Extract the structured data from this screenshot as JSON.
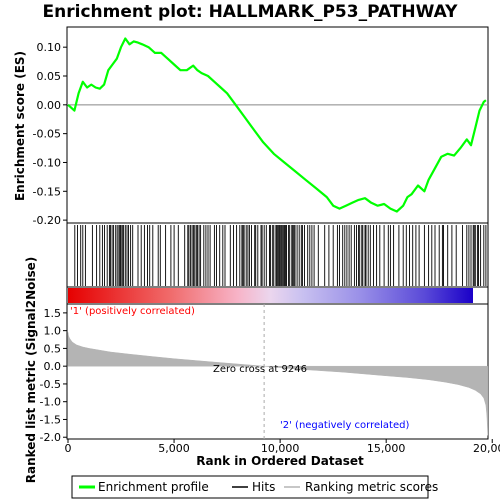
{
  "chart_data": [
    {
      "panel": "enrichment",
      "type": "line",
      "title": "Enrichment plot: HALLMARK_P53_PATHWAY",
      "ylabel": "Enrichment score (ES)",
      "ylim": [
        -0.205,
        0.135
      ],
      "yticks": [
        0.1,
        0.05,
        0.0,
        -0.05,
        -0.1,
        -0.15,
        -0.2
      ],
      "ytick_labels": [
        "0.10",
        "0.05",
        "0.00",
        "-0.05",
        "-0.10",
        "-0.15",
        "-0.20"
      ],
      "xlim": [
        0,
        19800
      ],
      "series": [
        {
          "name": "Enrichment profile",
          "color": "#00ff00",
          "x": [
            0,
            300,
            500,
            700,
            900,
            1100,
            1300,
            1500,
            1700,
            1900,
            2100,
            2300,
            2500,
            2700,
            2900,
            3100,
            3300,
            3500,
            3800,
            4100,
            4400,
            4700,
            5000,
            5300,
            5600,
            5900,
            6100,
            6300,
            6600,
            6900,
            7200,
            7500,
            7900,
            8300,
            8700,
            9200,
            9700,
            10200,
            10700,
            11200,
            11700,
            12200,
            12500,
            12800,
            13100,
            13400,
            13700,
            14000,
            14300,
            14600,
            14900,
            15200,
            15500,
            15800,
            16000,
            16200,
            16500,
            16800,
            17000,
            17300,
            17600,
            17900,
            18200,
            18500,
            18800,
            19000,
            19200,
            19400,
            19600,
            19700
          ],
          "y": [
            0.0,
            -0.01,
            0.02,
            0.04,
            0.03,
            0.035,
            0.03,
            0.028,
            0.035,
            0.06,
            0.07,
            0.08,
            0.1,
            0.115,
            0.105,
            0.11,
            0.108,
            0.105,
            0.1,
            0.09,
            0.09,
            0.08,
            0.07,
            0.06,
            0.06,
            0.068,
            0.06,
            0.055,
            0.05,
            0.04,
            0.03,
            0.02,
            0.0,
            -0.02,
            -0.04,
            -0.065,
            -0.085,
            -0.1,
            -0.115,
            -0.13,
            -0.145,
            -0.16,
            -0.175,
            -0.18,
            -0.175,
            -0.17,
            -0.165,
            -0.162,
            -0.17,
            -0.175,
            -0.172,
            -0.18,
            -0.185,
            -0.175,
            -0.16,
            -0.155,
            -0.14,
            -0.15,
            -0.13,
            -0.11,
            -0.09,
            -0.085,
            -0.088,
            -0.075,
            -0.06,
            -0.07,
            -0.04,
            -0.01,
            0.005,
            0.008
          ]
        }
      ]
    },
    {
      "panel": "hits",
      "type": "scatter",
      "series": [
        {
          "name": "Hits",
          "color": "#000000",
          "x": [
            320,
            450,
            600,
            700,
            820,
            1150,
            1350,
            1500,
            1620,
            1720,
            1850,
            1950,
            2000,
            2080,
            2150,
            2250,
            2320,
            2400,
            2450,
            2500,
            2560,
            2620,
            2700,
            2780,
            2850,
            2950,
            3050,
            3300,
            3450,
            3600,
            3750,
            3850,
            4000,
            4250,
            4350,
            4600,
            4850,
            5000,
            5200,
            5500,
            5650,
            5700,
            5780,
            5850,
            5920,
            5980,
            6050,
            6100,
            6180,
            6250,
            6400,
            6500,
            6600,
            6700,
            6900,
            7000,
            7150,
            7300,
            7400,
            7650,
            7800,
            7950,
            8100,
            8200,
            8250,
            8300,
            8400,
            8480,
            8550,
            8650,
            8800,
            8850,
            8950,
            9100,
            9150,
            9250,
            9350,
            9500,
            9550,
            9650,
            9700,
            9800,
            9850,
            9900,
            9950,
            10000,
            10050,
            10100,
            10150,
            10200,
            10250,
            10300,
            10400,
            10450,
            10550,
            10600,
            10650,
            10700,
            10800,
            10900,
            11000,
            11050,
            11150,
            11300,
            11400,
            11500,
            11600,
            11800,
            12100,
            12300,
            12500,
            12700,
            12800,
            12950,
            13050,
            13150,
            13250,
            13350,
            13500,
            13600,
            13700,
            13750,
            13850,
            13900,
            14000,
            14050,
            14150,
            14250,
            14400,
            14550,
            14700,
            14900,
            15100,
            15200,
            15350,
            15600,
            15800,
            15950,
            16100,
            16250,
            16400,
            16550,
            16800,
            17000,
            17150,
            17300,
            17500,
            17650,
            17700,
            17900,
            18100,
            18300,
            18600,
            18800,
            18900,
            19000,
            19100,
            19150,
            19200,
            19300,
            19350,
            19450,
            19600,
            19700
          ]
        }
      ]
    },
    {
      "panel": "ranked-metric",
      "type": "area",
      "xlabel": "Rank in Ordered Dataset",
      "ylabel": "Ranked list metric (Signal2Noise)",
      "ylim": [
        -2.05,
        1.75
      ],
      "yticks": [
        1.5,
        1.0,
        0.5,
        0.0,
        -0.5,
        -1.0,
        -1.5,
        -2.0
      ],
      "ytick_labels": [
        "1.5",
        "1.0",
        "0.5",
        "0.0",
        "-0.5",
        "-1.0",
        "-1.5",
        "-2.0"
      ],
      "xlim": [
        0,
        19800
      ],
      "xticks": [
        0,
        5000,
        10000,
        15000,
        20000
      ],
      "xtick_labels": [
        "0",
        "5,000",
        "10,000",
        "15,000",
        "20,000"
      ],
      "series": [
        {
          "name": "Ranking metric scores",
          "color": "#b4b4b4",
          "x": [
            0,
            30,
            80,
            200,
            400,
            700,
            1000,
            1500,
            2000,
            3000,
            4000,
            5000,
            6000,
            7000,
            8000,
            9246,
            10000,
            11000,
            12000,
            13000,
            14000,
            15000,
            16000,
            17000,
            17800,
            18400,
            18900,
            19200,
            19450,
            19600,
            19700,
            19750,
            19790
          ],
          "y": [
            0.95,
            0.85,
            0.78,
            0.68,
            0.6,
            0.54,
            0.5,
            0.45,
            0.4,
            0.33,
            0.27,
            0.21,
            0.16,
            0.11,
            0.06,
            0.0,
            -0.04,
            -0.09,
            -0.13,
            -0.17,
            -0.22,
            -0.27,
            -0.32,
            -0.38,
            -0.45,
            -0.52,
            -0.6,
            -0.68,
            -0.78,
            -0.9,
            -1.1,
            -1.4,
            -1.95
          ]
        }
      ],
      "annotations": {
        "zero_cross": "Zero cross at 9246",
        "zero_cross_rank": 9246,
        "positive_label": "'1' (positively correlated)",
        "negative_label": "'2' (negatively correlated)"
      }
    }
  ],
  "colors": {
    "profile": "#00ff00",
    "hits": "#000000",
    "metric_fill": "#b4b4b4",
    "positive_label": "#ff0000",
    "negative_label": "#0000ff",
    "heat_high": "#e80000",
    "heat_low": "#1a00c8"
  },
  "legend": {
    "items": [
      {
        "label": "Enrichment profile",
        "color": "#00ff00",
        "style": "line"
      },
      {
        "label": "Hits",
        "color": "#000000",
        "style": "line"
      },
      {
        "label": "Ranking metric scores",
        "color": "#b4b4b4",
        "style": "line"
      }
    ]
  }
}
